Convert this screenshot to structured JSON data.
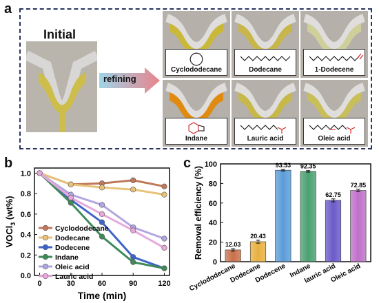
{
  "panels": {
    "a": "a",
    "b": "b",
    "c": "c"
  },
  "photo_panel": {
    "initial_label": "Initial",
    "arrow_label": "refining",
    "samples": [
      {
        "label": "Cyclododecane",
        "liquid": "#c9b83a",
        "icon": "ring-molecule-icon"
      },
      {
        "label": "Dodecane",
        "liquid": "#c8b64a",
        "icon": "chain-molecule-icon"
      },
      {
        "label": "1-Dodecene",
        "liquid": "#cfcf9a",
        "icon": "alkene-molecule-icon"
      },
      {
        "label": "Indane",
        "liquid": "#e08a10",
        "icon": "indane-molecule-icon"
      },
      {
        "label": "Lauric acid",
        "liquid": "#c7b84a",
        "icon": "acid-molecule-icon"
      },
      {
        "label": "Oleic acid",
        "liquid": "#c8be5a",
        "icon": "oleic-molecule-icon"
      }
    ],
    "initial_liquid": "#cdbd4a",
    "arrow_color": "#e8848c"
  },
  "chart_data": [
    {
      "type": "line",
      "xlabel": "Time (min)",
      "ylabel_main": "VOCl",
      "ylabel_sub": "3",
      "ylabel_unit": " (wt%)",
      "xlim": [
        -5,
        125
      ],
      "ylim": [
        0,
        1.05
      ],
      "xticks": [
        0,
        30,
        60,
        90,
        120
      ],
      "yticks": [
        0.0,
        0.2,
        0.4,
        0.6,
        0.8,
        1.0
      ],
      "ytick_labels": [
        "0.0",
        "0.2",
        "0.4",
        "0.6",
        "0.8",
        "1.0"
      ],
      "x": [
        0,
        30,
        60,
        90,
        120
      ],
      "series": [
        {
          "name": "Cyclododecane",
          "color": "#c0785a",
          "values": [
            1.0,
            0.89,
            0.9,
            0.93,
            0.87
          ]
        },
        {
          "name": "Dodecane",
          "color": "#e8c27a",
          "values": [
            1.0,
            0.89,
            0.86,
            0.84,
            0.79
          ]
        },
        {
          "name": "Dodecene",
          "color": "#3f63c8",
          "values": [
            1.0,
            0.74,
            0.52,
            0.18,
            0.07
          ]
        },
        {
          "name": "Indane",
          "color": "#3f8a5a",
          "values": [
            1.0,
            0.71,
            0.38,
            0.13,
            0.07
          ]
        },
        {
          "name": "Oleic acid",
          "color": "#b3a6e0",
          "values": [
            1.0,
            0.79,
            0.69,
            0.47,
            0.36
          ]
        },
        {
          "name": "Lauric acid",
          "color": "#e8a8dc",
          "values": [
            1.0,
            0.76,
            0.6,
            0.44,
            0.27
          ]
        }
      ],
      "legend_position": "bottom-left"
    },
    {
      "type": "bar",
      "ylabel": "Removal efficiency (%)",
      "ylim": [
        0,
        100
      ],
      "yticks": [
        0,
        20,
        40,
        60,
        80,
        100
      ],
      "categories": [
        "Cyclododecane",
        "Dodecane",
        "Dodecene",
        "Indane",
        "lauric acid",
        "Oleic acid"
      ],
      "values": [
        12.03,
        20.43,
        93.53,
        92.35,
        62.75,
        72.85
      ],
      "value_labels": [
        "12.03",
        "20.43",
        "93.53",
        "92.35",
        "62.75",
        "72.85"
      ],
      "errors": [
        1.2,
        1.5,
        0.8,
        0.8,
        1.5,
        1.2
      ],
      "colors": [
        "#c8704a",
        "#e8b040",
        "#5a9cd8",
        "#4aa070",
        "#6a5ac8",
        "#c070c8"
      ]
    }
  ]
}
